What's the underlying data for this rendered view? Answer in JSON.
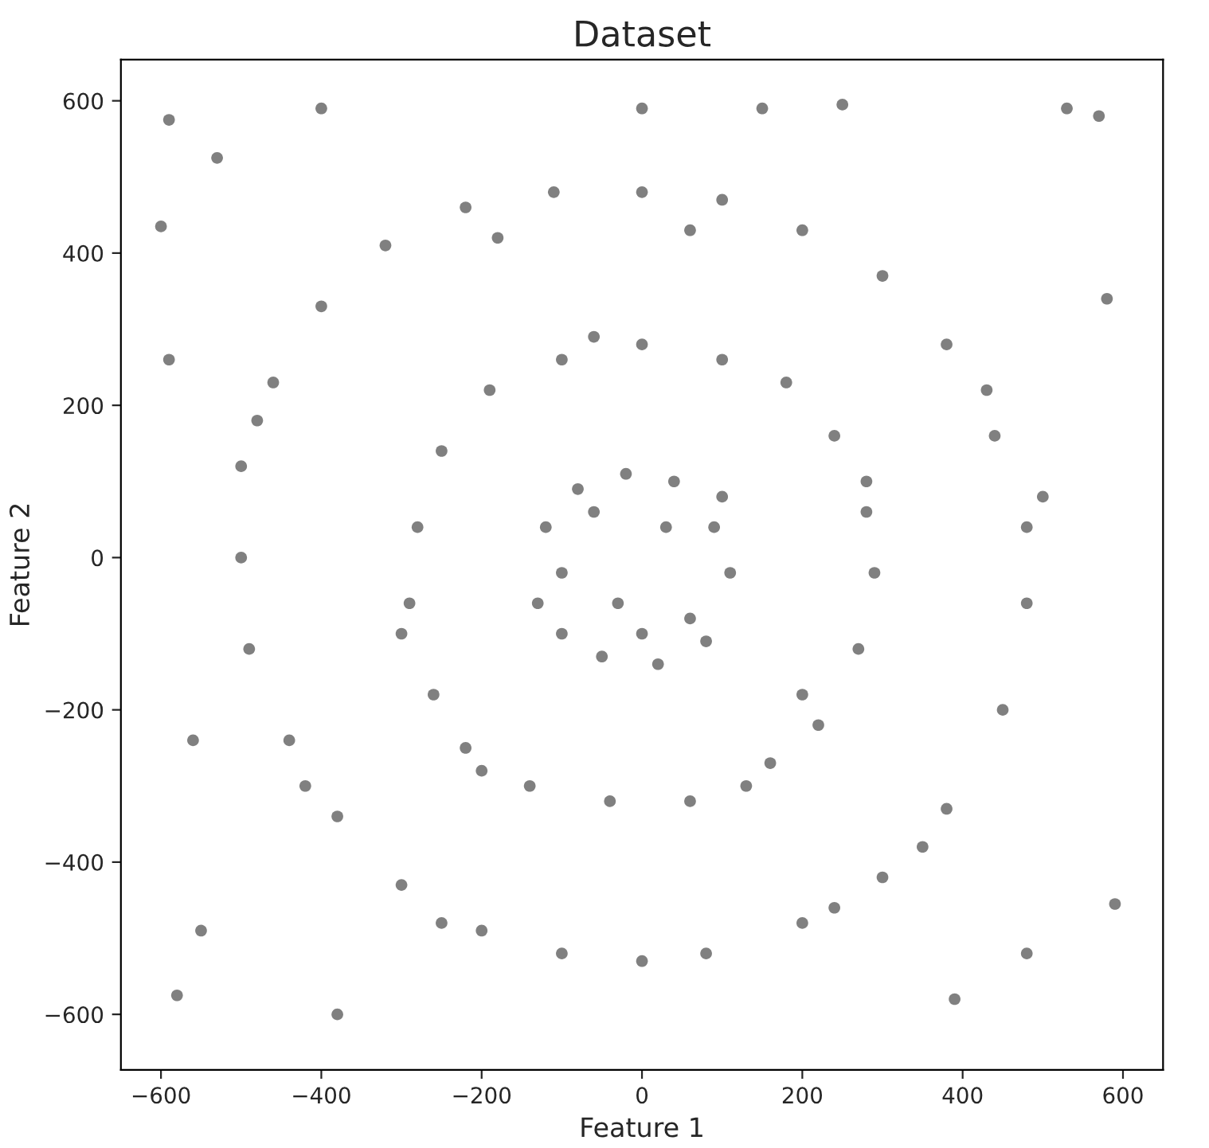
{
  "chart_data": {
    "type": "scatter",
    "title": "Dataset",
    "xlabel": "Feature 1",
    "ylabel": "Feature 2",
    "xlim": [
      -650,
      650
    ],
    "ylim": [
      -673,
      654
    ],
    "xticks": [
      -600,
      -400,
      -200,
      0,
      200,
      400,
      600
    ],
    "yticks": [
      -600,
      -400,
      -200,
      0,
      200,
      400,
      600
    ],
    "grid": false,
    "marker": "circle",
    "series": [
      {
        "color": "#808080",
        "x": [
          -100,
          -120,
          -80,
          -20,
          40,
          90,
          110,
          80,
          20,
          -50,
          -100,
          0,
          -130,
          60,
          100,
          -60,
          30,
          -30,
          0,
          100,
          180,
          240,
          280,
          290,
          270,
          220,
          160,
          60,
          -40,
          -140,
          -220,
          -260,
          -290,
          -280,
          -250,
          -190,
          -100,
          -60,
          200,
          -300,
          280,
          -200,
          130,
          0,
          100,
          200,
          300,
          380,
          440,
          480,
          480,
          450,
          380,
          300,
          200,
          80,
          0,
          -100,
          -200,
          -300,
          -380,
          -440,
          -490,
          -500,
          -500,
          -460,
          -400,
          -320,
          -220,
          -110,
          -480,
          -420,
          430,
          350,
          240,
          -250,
          -180,
          60,
          500,
          -590,
          -600,
          -400,
          -590,
          -580,
          -380,
          590,
          390,
          570,
          580,
          530,
          250,
          -530,
          -550,
          0,
          150,
          480,
          -560
        ],
        "values": [
          -20,
          40,
          90,
          110,
          100,
          40,
          -20,
          -110,
          -140,
          -130,
          -100,
          -100,
          -60,
          -80,
          80,
          60,
          40,
          -60,
          280,
          260,
          230,
          160,
          60,
          -20,
          -120,
          -220,
          -270,
          -320,
          -320,
          -300,
          -250,
          -180,
          -60,
          40,
          140,
          220,
          260,
          290,
          -180,
          -100,
          100,
          -280,
          -300,
          480,
          470,
          430,
          370,
          280,
          160,
          40,
          -60,
          -200,
          -330,
          -420,
          -480,
          -520,
          -530,
          -520,
          -490,
          -430,
          -340,
          -240,
          -120,
          0,
          120,
          230,
          330,
          410,
          460,
          480,
          180,
          -300,
          220,
          -380,
          -460,
          -480,
          420,
          430,
          80,
          575,
          435,
          590,
          260,
          -575,
          -600,
          -455,
          -580,
          580,
          340,
          590,
          595,
          525,
          -490,
          590,
          590,
          -520,
          -240
        ]
      }
    ]
  }
}
